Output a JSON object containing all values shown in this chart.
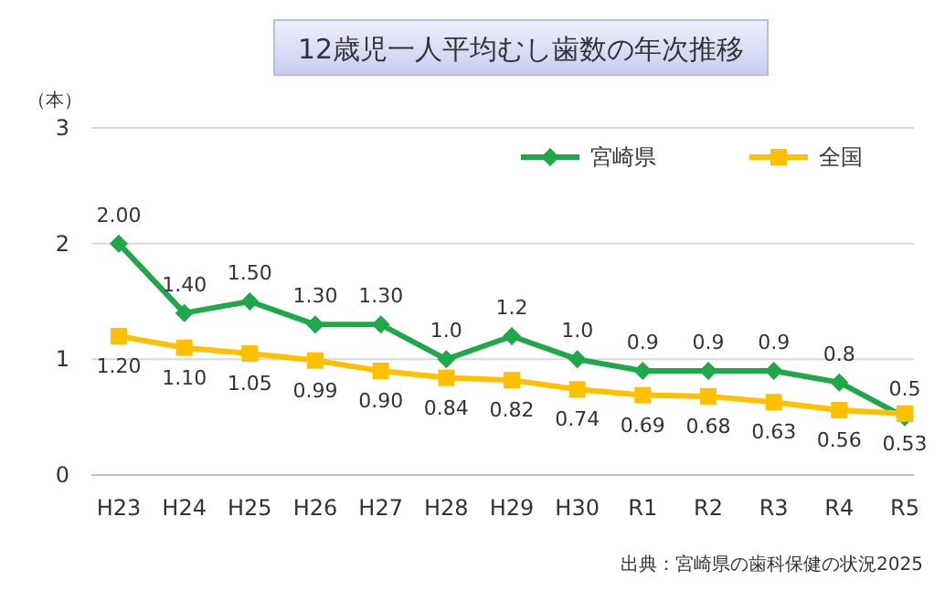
{
  "chart_data": {
    "type": "line",
    "title": "12歳児一人平均むし歯数の年次推移",
    "ylabel": "（本）",
    "categories": [
      "H23",
      "H24",
      "H25",
      "H26",
      "H27",
      "H28",
      "H29",
      "H30",
      "R1",
      "R2",
      "R3",
      "R4",
      "R5"
    ],
    "series": [
      {
        "name": "宮崎県",
        "color": "#1ea84a",
        "marker": "diamond",
        "values": [
          2.0,
          1.4,
          1.5,
          1.3,
          1.3,
          1.0,
          1.2,
          1.0,
          0.9,
          0.9,
          0.9,
          0.8,
          0.5
        ],
        "value_labels": [
          "2.00",
          "1.40",
          "1.50",
          "1.30",
          "1.30",
          "1.0",
          "1.2",
          "1.0",
          "0.9",
          "0.9",
          "0.9",
          "0.8",
          "0.5"
        ]
      },
      {
        "name": "全国",
        "color": "#ffc000",
        "marker": "square",
        "values": [
          1.2,
          1.1,
          1.05,
          0.99,
          0.9,
          0.84,
          0.82,
          0.74,
          0.69,
          0.68,
          0.63,
          0.56,
          0.53
        ],
        "value_labels": [
          "1.20",
          "1.10",
          "1.05",
          "0.99",
          "0.90",
          "0.84",
          "0.82",
          "0.74",
          "0.69",
          "0.68",
          "0.63",
          "0.56",
          "0.53"
        ]
      }
    ],
    "ylim": [
      0,
      3
    ],
    "yticks": [
      0,
      1,
      2,
      3
    ],
    "grid": "y",
    "legend": "top right",
    "line_style": "solid",
    "annotations": [
      "出典：宮崎県の歯科保健の状況2025"
    ]
  }
}
